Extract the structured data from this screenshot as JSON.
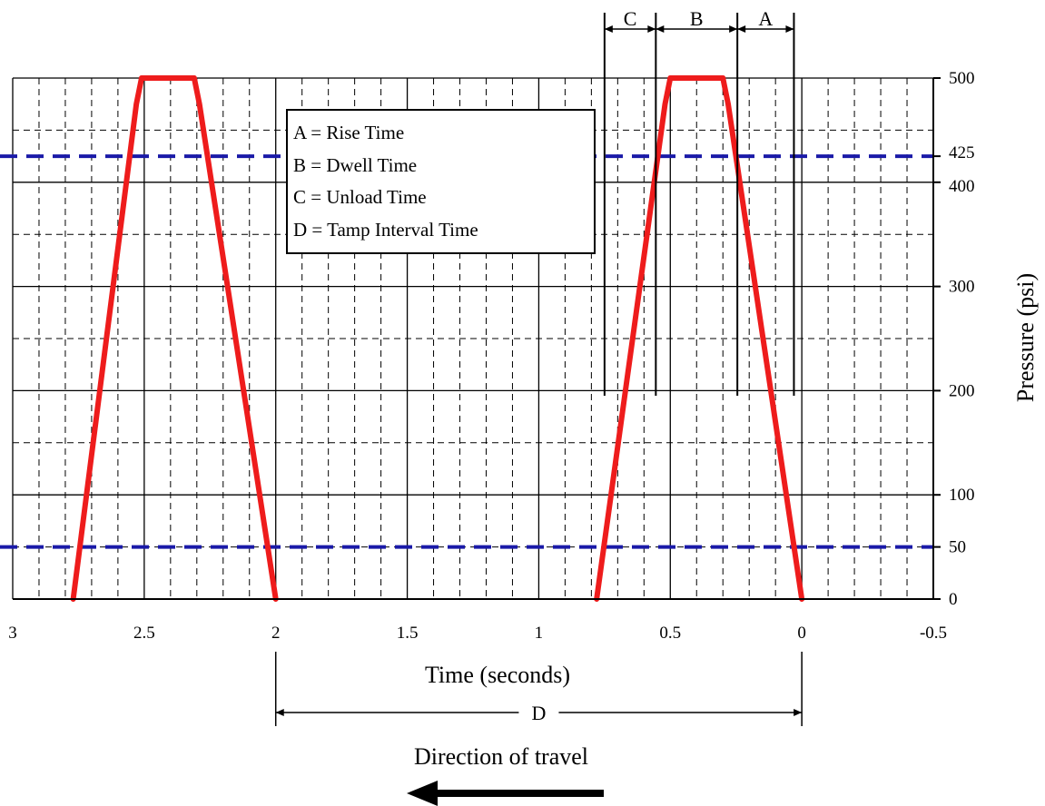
{
  "chart_data": {
    "type": "line",
    "xlabel": "Time (seconds)",
    "ylabel": "Pressure (psi)",
    "xlim": [
      3,
      -0.5
    ],
    "ylim": [
      0,
      500
    ],
    "x_ticks": [
      "3",
      "2.5",
      "2",
      "1.5",
      "1",
      "0.5",
      "0",
      "-0.5"
    ],
    "x_tick_values": [
      3,
      2.5,
      2,
      1.5,
      1,
      0.5,
      0,
      -0.5
    ],
    "x_minor_step": 0.1,
    "y_ticks": [
      "0",
      "50",
      "100",
      "200",
      "300",
      "400",
      "425",
      "500"
    ],
    "y_tick_values": [
      0,
      50,
      100,
      200,
      300,
      400,
      425,
      500
    ],
    "y_major_grid": [
      0,
      100,
      200,
      300,
      400,
      500
    ],
    "y_minor_grid": [
      50,
      150,
      250,
      350,
      450
    ],
    "grid": true,
    "reference_lines": [
      {
        "y": 425,
        "color": "#1a1aa8"
      },
      {
        "y": 50,
        "color": "#1a1aa8"
      }
    ],
    "series": [
      {
        "color": "#ee1c1c",
        "x": [
          2.77,
          2.53,
          2.51,
          2.31,
          2.29,
          2.0
        ],
        "y": [
          0,
          475,
          500,
          500,
          475,
          0
        ]
      },
      {
        "color": "#ee1c1c",
        "x": [
          0.78,
          0.52,
          0.5,
          0.3,
          0.28,
          0.0
        ],
        "y": [
          0,
          475,
          500,
          500,
          475,
          0
        ]
      }
    ],
    "legend": {
      "placement": "top-center",
      "entries": [
        "A = Rise Time",
        "B = Dwell Time",
        "C = Unload Time",
        "D = Tamp Interval Time"
      ]
    },
    "dimensions": [
      {
        "label": "C",
        "from": 0.75,
        "to": 0.555,
        "position": "above"
      },
      {
        "label": "B",
        "from": 0.555,
        "to": 0.245,
        "position": "above"
      },
      {
        "label": "A",
        "from": 0.245,
        "to": 0.03,
        "position": "above"
      },
      {
        "label": "D",
        "from": 2.0,
        "to": 0.0,
        "position": "below"
      }
    ],
    "annotation": {
      "text": "Direction of travel",
      "arrow": "left"
    }
  }
}
